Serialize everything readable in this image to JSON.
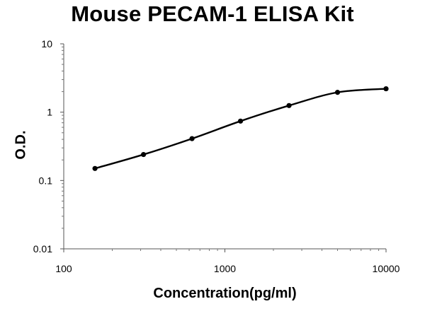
{
  "chart_data": {
    "type": "line",
    "title": "Mouse PECAM-1 ELISA Kit",
    "xlabel": "Concentration(pg/ml)",
    "ylabel": "O.D.",
    "x_scale": "log",
    "y_scale": "log",
    "xlim": [
      100,
      10000
    ],
    "ylim": [
      0.01,
      10
    ],
    "x_ticks": [
      100,
      1000,
      10000
    ],
    "x_tick_labels": [
      "100",
      "1000",
      "10000"
    ],
    "y_ticks": [
      0.01,
      0.1,
      1,
      10
    ],
    "y_tick_labels": [
      "0.01",
      "0.1",
      "1",
      "10"
    ],
    "grid": false,
    "series": [
      {
        "x": [
          156.25,
          312.5,
          625,
          1250,
          2500,
          5000,
          10000
        ],
        "y": [
          0.15,
          0.24,
          0.41,
          0.74,
          1.25,
          1.95,
          2.2
        ],
        "color": "#000000"
      }
    ]
  }
}
